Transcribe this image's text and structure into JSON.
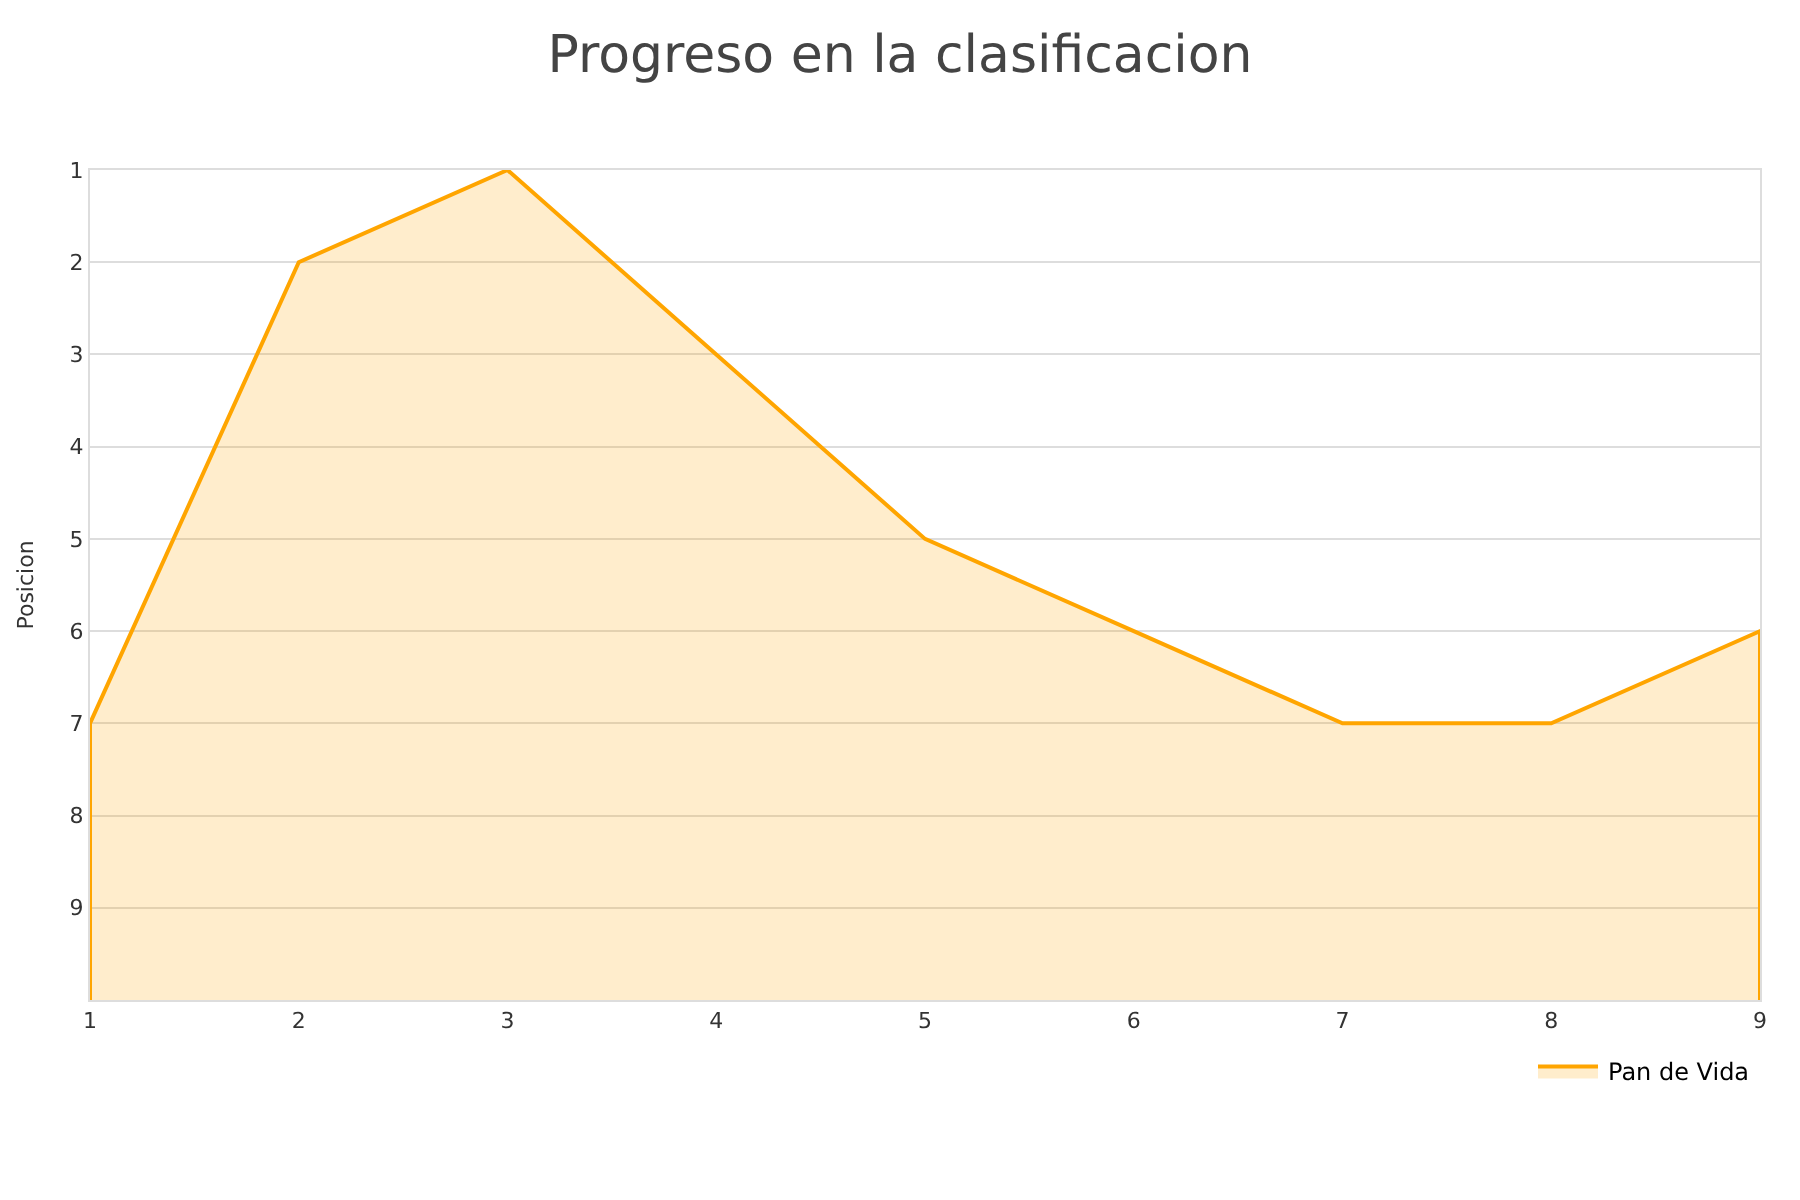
{
  "chart_data": {
    "type": "area",
    "title": "Progreso en la clasificacion",
    "ylabel": "Posicion",
    "x": [
      1,
      2,
      3,
      4,
      5,
      6,
      7,
      8,
      9
    ],
    "series": [
      {
        "name": "Pan de Vida",
        "color": "#ffa500",
        "values": [
          7,
          2,
          1,
          3,
          5,
          6,
          7,
          7,
          6
        ]
      }
    ],
    "xlim": [
      1,
      9
    ],
    "xticks": [
      1,
      2,
      3,
      4,
      5,
      6,
      7,
      8,
      9
    ],
    "ylim": [
      10,
      1
    ],
    "yticks": [
      1,
      2,
      3,
      4,
      5,
      6,
      7,
      8,
      9
    ],
    "grid": "y",
    "legend": "bottom right"
  }
}
